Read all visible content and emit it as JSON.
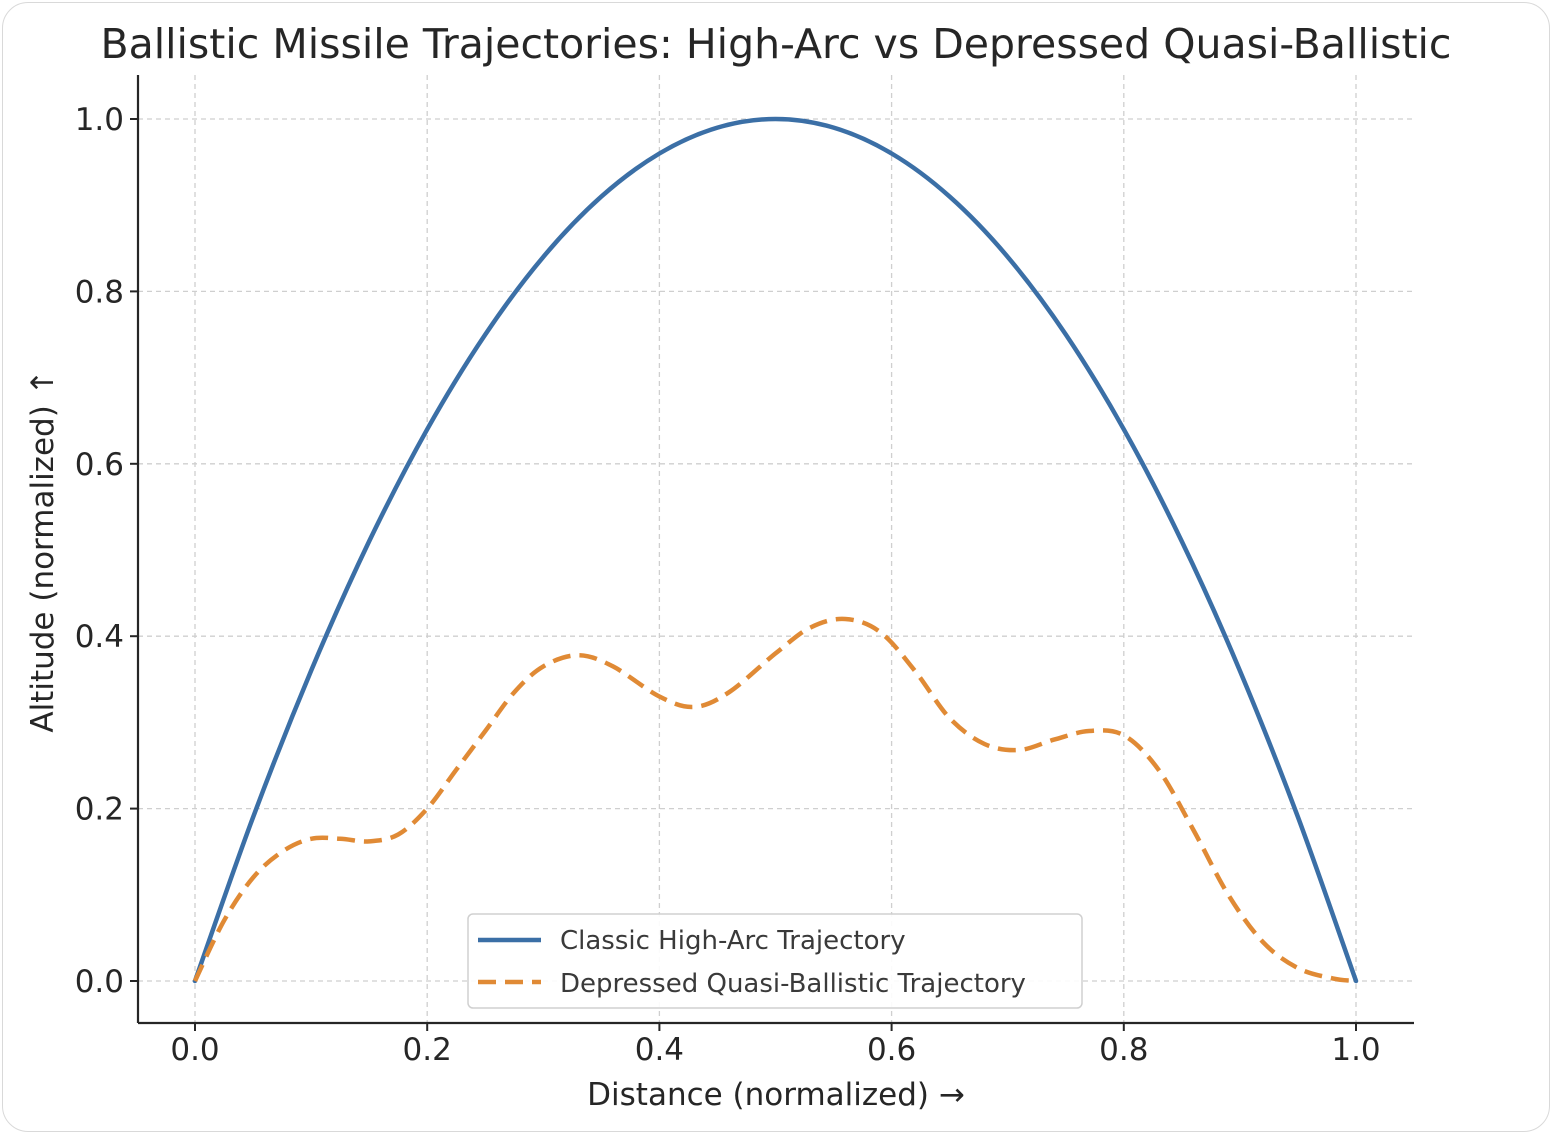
{
  "chart_data": {
    "type": "line",
    "title": "Ballistic Missile Trajectories: High-Arc vs Depressed Quasi-Ballistic",
    "xlabel": "Distance (normalized) →",
    "ylabel": "Altitude (normalized) ↑",
    "xlim": [
      -0.05,
      1.05
    ],
    "ylim": [
      -0.05,
      1.05
    ],
    "xticks": [
      "0.0",
      "0.2",
      "0.4",
      "0.6",
      "0.8",
      "1.0"
    ],
    "yticks": [
      "0.0",
      "0.2",
      "0.4",
      "0.6",
      "0.8",
      "1.0"
    ],
    "grid": true,
    "legend_position": "lower center",
    "series": [
      {
        "name": "Classic High-Arc Trajectory",
        "color": "#3b6fa6",
        "style": "solid",
        "x": [
          0.0,
          0.05,
          0.1,
          0.15,
          0.2,
          0.25,
          0.3,
          0.35,
          0.4,
          0.45,
          0.5,
          0.55,
          0.6,
          0.65,
          0.7,
          0.75,
          0.8,
          0.85,
          0.9,
          0.95,
          1.0
        ],
        "y": [
          0.0,
          0.19,
          0.36,
          0.51,
          0.64,
          0.75,
          0.84,
          0.91,
          0.96,
          0.99,
          1.0,
          0.99,
          0.96,
          0.91,
          0.84,
          0.75,
          0.64,
          0.51,
          0.36,
          0.19,
          0.0
        ]
      },
      {
        "name": "Depressed Quasi-Ballistic Trajectory",
        "color": "#e08a35",
        "style": "dashed",
        "x": [
          0.0,
          0.025,
          0.05,
          0.075,
          0.1,
          0.125,
          0.15,
          0.175,
          0.2,
          0.225,
          0.25,
          0.275,
          0.3,
          0.33,
          0.36,
          0.4,
          0.43,
          0.46,
          0.5,
          0.53,
          0.56,
          0.59,
          0.62,
          0.65,
          0.68,
          0.71,
          0.74,
          0.77,
          0.8,
          0.83,
          0.86,
          0.89,
          0.92,
          0.95,
          0.98,
          1.0
        ],
        "y": [
          0.0,
          0.07,
          0.12,
          0.15,
          0.165,
          0.165,
          0.162,
          0.17,
          0.2,
          0.245,
          0.29,
          0.335,
          0.365,
          0.378,
          0.365,
          0.33,
          0.318,
          0.335,
          0.38,
          0.41,
          0.42,
          0.405,
          0.36,
          0.305,
          0.275,
          0.268,
          0.28,
          0.29,
          0.285,
          0.245,
          0.175,
          0.1,
          0.045,
          0.015,
          0.003,
          0.0
        ]
      }
    ]
  }
}
